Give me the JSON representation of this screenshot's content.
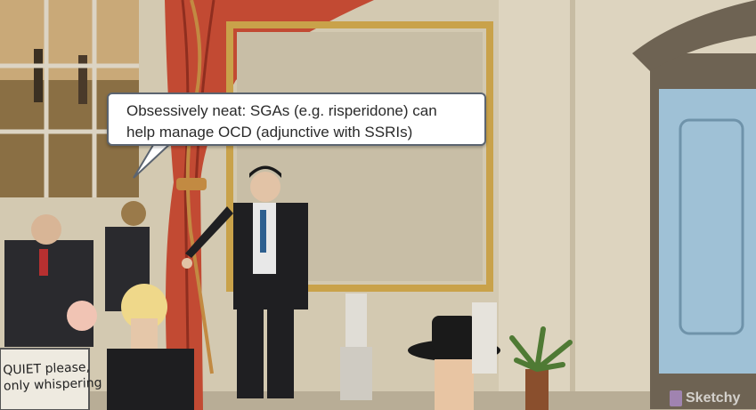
{
  "caption": {
    "line1": "Obsessively neat: SGAs (e.g. risperidone) can",
    "line2": "help manage OCD (adjunctive with SSRIs)"
  },
  "sign": {
    "line1": "QUIET please,",
    "line2": "only whispering"
  },
  "brand": {
    "name": "Sketchy"
  },
  "colors": {
    "wall": "#d6cdb6",
    "curtain": "#c0452f",
    "frame": "#c9a24a",
    "cabinet": "#9fc1d6",
    "bubble_border": "#5b6470"
  }
}
